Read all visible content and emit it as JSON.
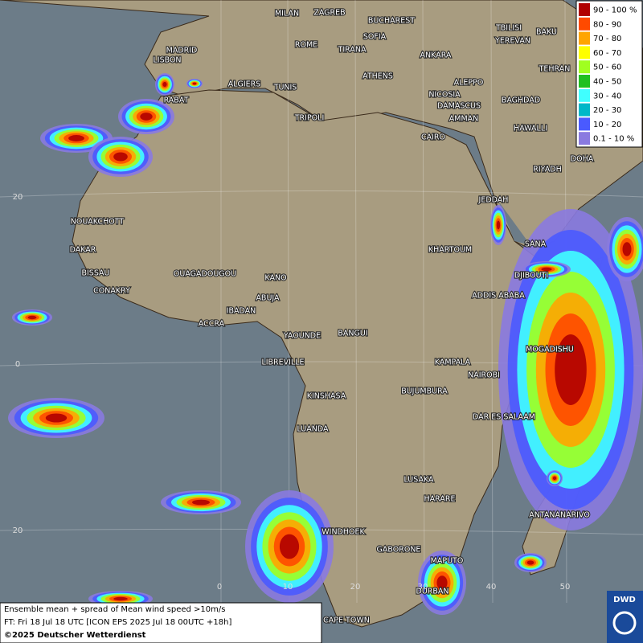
{
  "legend": {
    "items": [
      {
        "label": "90 - 100 %",
        "color": "#b00000"
      },
      {
        "label": "80 - 90",
        "color": "#ff4a00"
      },
      {
        "label": "70 - 80",
        "color": "#ffa500"
      },
      {
        "label": "60 - 70",
        "color": "#ffff00"
      },
      {
        "label": "50 - 60",
        "color": "#a0ff20"
      },
      {
        "label": "40 - 50",
        "color": "#20c020"
      },
      {
        "label": "30 - 40",
        "color": "#40ffff"
      },
      {
        "label": "20 - 30",
        "color": "#00b8c8"
      },
      {
        "label": "10 - 20",
        "color": "#4a5aff"
      },
      {
        "label": "0.1 - 10 %",
        "color": "#8a7ae0"
      }
    ]
  },
  "cities": [
    "MILAN",
    "ZAGREB",
    "BUCHAREST",
    "SOFIA",
    "TBILISI",
    "YEREVAN",
    "BAKU",
    "MADRID",
    "ROME",
    "TIRANA",
    "ANKARA",
    "LISBON",
    "TEHRAN",
    "ATHENS",
    "ALGIERS",
    "TUNIS",
    "ALEPPO",
    "NICOSIA",
    "RABAT",
    "BAGHDAD",
    "DAMASCUS",
    "TRIPOLI",
    "AMMAN",
    "CAIRO",
    "HAWALLI",
    "DOHA",
    "RIYADH",
    "JEDDAH",
    "NOUAKCHOTT",
    "SANA",
    "DAKAR",
    "KHARTOUM",
    "BISSAU",
    "DJIBOUTI",
    "OUAGADOUGOU",
    "KANO",
    "CONAKRY",
    "ABUJA",
    "ADDIS ABABA",
    "IBADAN",
    "ACCRA",
    "YAOUNDE",
    "BANGUI",
    "MOGADISHU",
    "LIBREVILLE",
    "KAMPALA",
    "NAIROBI",
    "KINSHASA",
    "BUJUMBURA",
    "DAR ES SALAAM",
    "LUANDA",
    "LUSAKA",
    "HARARE",
    "ANTANANARIVO",
    "WINDHOEK",
    "GABORONE",
    "MAPUTO",
    "DURBAN",
    "CAPE TOWN"
  ],
  "grid_labels": {
    "lat": [
      20,
      0,
      20
    ],
    "lon": [
      0,
      10,
      20,
      30,
      40,
      50
    ]
  },
  "footer": {
    "line1": "Ensemble mean + spread of Mean wind speed >10m/s",
    "line2": "FT: Fri 18 Jul 18 UTC [ICON EPS 2025 Jul 18 00UTC +18h]",
    "line3": "©2025 Deutscher Wetterdienst"
  },
  "logo": "DWD"
}
